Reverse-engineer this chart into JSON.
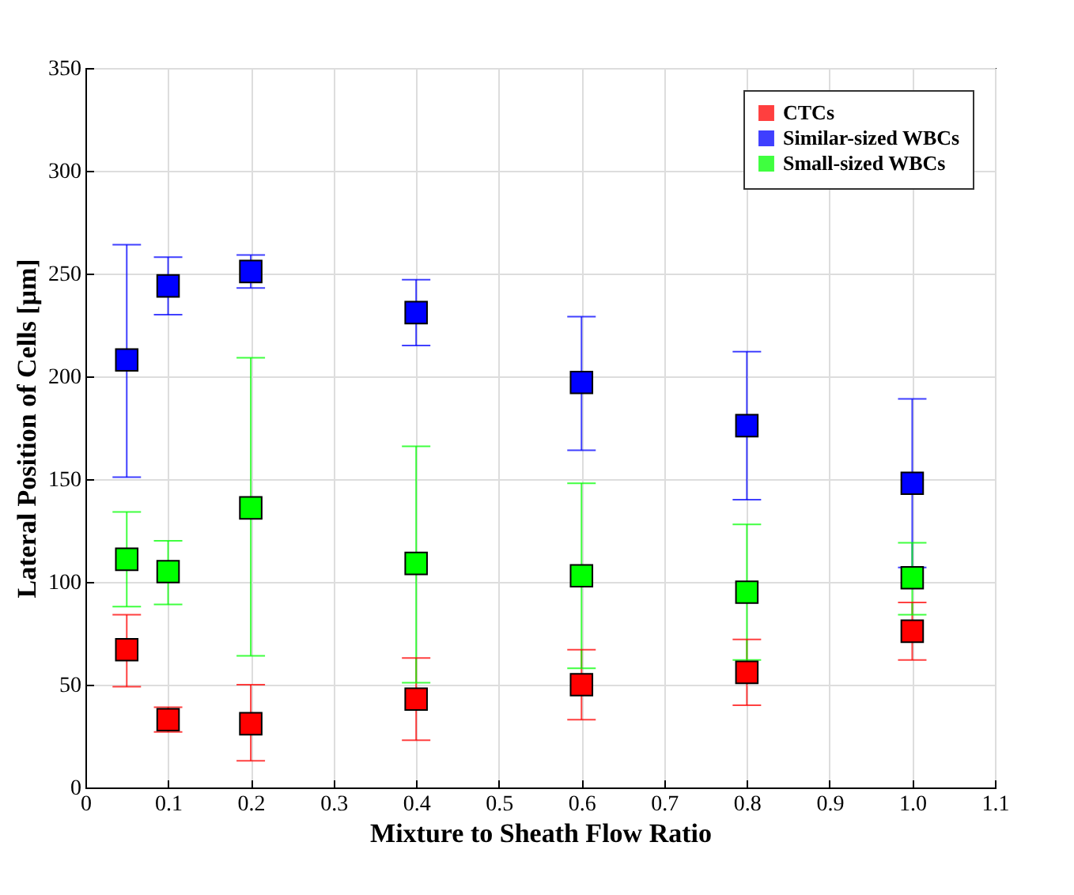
{
  "chart_data": {
    "type": "scatter",
    "xlabel": "Mixture to Sheath Flow Ratio",
    "ylabel": "Lateral Position of Cells [μm]",
    "x": [
      0.05,
      0.1,
      0.2,
      0.4,
      0.6,
      0.8,
      1.0
    ],
    "series": [
      {
        "name": "CTCs",
        "color": "#ff0000",
        "values": [
          67,
          33,
          31,
          43,
          50,
          56,
          76
        ],
        "errors": [
          [
            49,
            84
          ],
          [
            27,
            39
          ],
          [
            13,
            50
          ],
          [
            23,
            63
          ],
          [
            33,
            67
          ],
          [
            40,
            72
          ],
          [
            62,
            90
          ]
        ]
      },
      {
        "name": "Similar-sized WBCs",
        "color": "#0000ff",
        "values": [
          208,
          244,
          251,
          231,
          197,
          176,
          148
        ],
        "errors": [
          [
            151,
            264
          ],
          [
            230,
            258
          ],
          [
            243,
            259
          ],
          [
            215,
            247
          ],
          [
            164,
            229
          ],
          [
            140,
            212
          ],
          [
            107,
            189
          ]
        ]
      },
      {
        "name": "Small-sized WBCs",
        "color": "#00ff00",
        "values": [
          111,
          105,
          136,
          109,
          103,
          95,
          102
        ],
        "errors": [
          [
            88,
            134
          ],
          [
            89,
            120
          ],
          [
            64,
            209
          ],
          [
            51,
            166
          ],
          [
            58,
            148
          ],
          [
            62,
            128
          ],
          [
            84,
            119
          ]
        ]
      }
    ],
    "xlim": [
      0,
      1.1
    ],
    "xticks": [
      0,
      0.1,
      0.2,
      0.3,
      0.4,
      0.5,
      0.6,
      0.7,
      0.8,
      0.9,
      {
        "value": 1,
        "label": "1.0"
      },
      1.1
    ],
    "ylim": [
      0,
      350
    ],
    "yticks": [
      0,
      50,
      100,
      150,
      200,
      250,
      300,
      350
    ],
    "grid": true,
    "legend": "top right",
    "marker": "square"
  }
}
